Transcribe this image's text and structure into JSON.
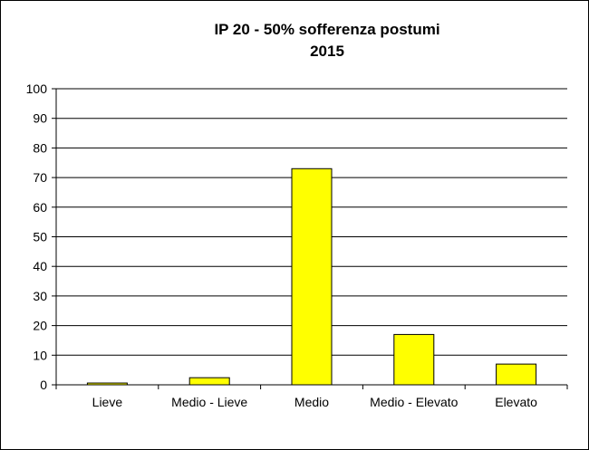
{
  "chart_data": {
    "type": "bar",
    "title": "IP 20 - 50% sofferenza postumi",
    "subtitle": "2015",
    "categories": [
      "Lieve",
      "Medio - Lieve",
      "Medio",
      "Medio - Elevato",
      "Elevato"
    ],
    "values": [
      0.6,
      2.4,
      73,
      17,
      7
    ],
    "color": "#ffff00",
    "ylim": [
      0,
      100
    ],
    "yticks": [
      0,
      10,
      20,
      30,
      40,
      50,
      60,
      70,
      80,
      90,
      100
    ],
    "grid": true
  }
}
